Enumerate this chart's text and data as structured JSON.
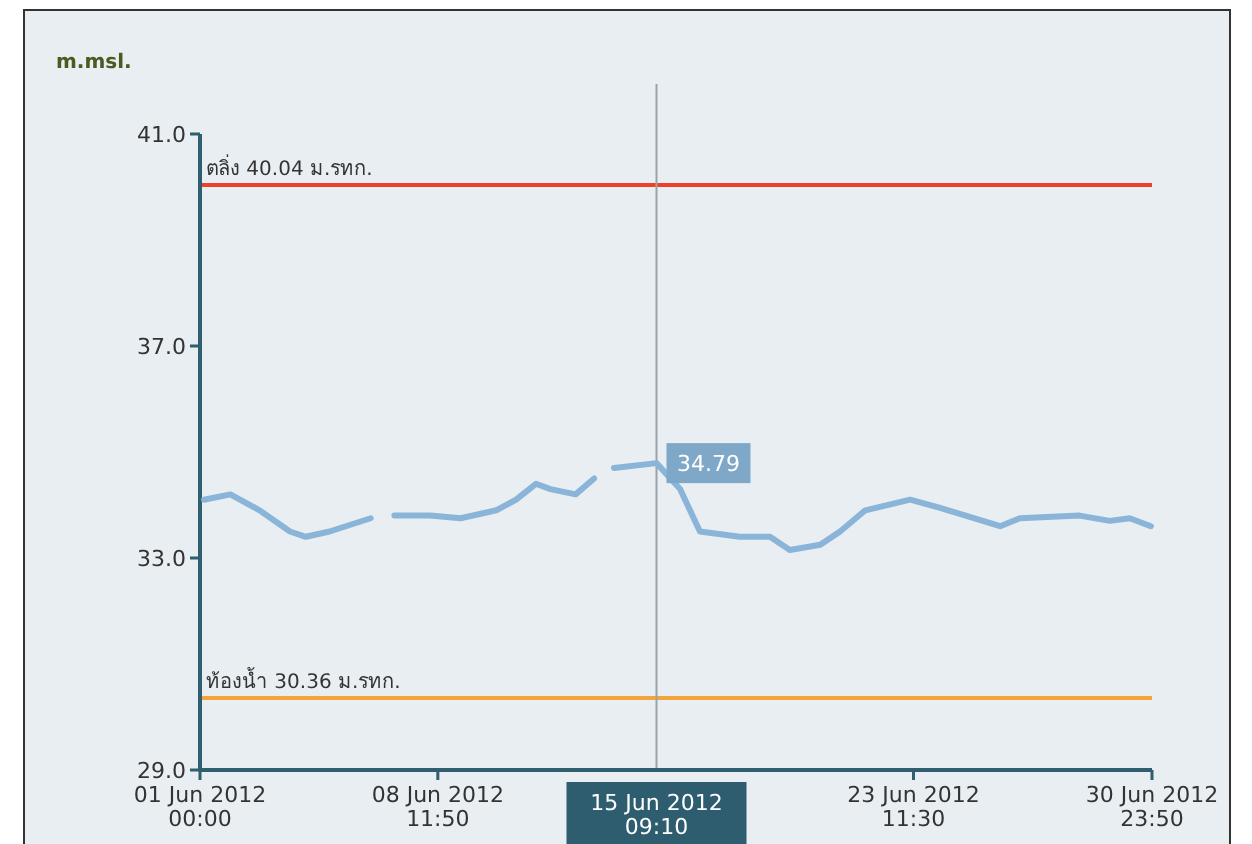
{
  "chart_data": {
    "type": "line",
    "ylabel": "m.msl.",
    "series": [
      {
        "color": "#8ab4d8",
        "x": [
          "2012-06-01T03:00",
          "2012-06-01T23:00",
          "2012-06-02T21:00",
          "2012-06-03T20:00",
          "2012-06-04T08:00",
          "2012-06-05T02:00",
          "2012-06-06T09:00"
        ],
        "values": [
          34.1,
          34.2,
          33.9,
          33.5,
          33.4,
          33.5,
          33.75
        ]
      },
      {
        "color": "#8ab4d8",
        "x": [
          "2012-06-07T03:00",
          "2012-06-08T06:00",
          "2012-06-09T05:00",
          "2012-06-10T08:00",
          "2012-06-10T23:00",
          "2012-06-11T14:00",
          "2012-06-12T01:00",
          "2012-06-12T20:00",
          "2012-06-13T10:00"
        ],
        "values": [
          33.8,
          33.8,
          33.75,
          33.9,
          34.1,
          34.4,
          34.3,
          34.2,
          34.5
        ]
      },
      {
        "color": "#8ab4d8",
        "x": [
          "2012-06-14T01:00",
          "2012-06-15T09:10",
          "2012-06-16T03:00",
          "2012-06-16T18:00",
          "2012-06-18T00:00",
          "2012-06-18T23:00",
          "2012-06-19T14:00",
          "2012-06-20T13:00",
          "2012-06-21T04:00",
          "2012-06-21T23:00",
          "2012-06-23T09:00",
          "2012-06-24T07:00",
          "2012-06-26T05:00",
          "2012-06-26T20:00",
          "2012-06-28T17:00",
          "2012-06-29T16:00",
          "2012-06-30T07:00",
          "2012-06-30T23:00"
        ],
        "values": [
          34.7,
          34.79,
          34.3,
          33.5,
          33.4,
          33.4,
          33.15,
          33.25,
          33.5,
          33.9,
          34.1,
          33.95,
          33.6,
          33.75,
          33.8,
          33.7,
          33.75,
          33.6
        ]
      }
    ],
    "xlim": [
      "2012-06-01T00:00",
      "2012-06-30T23:50"
    ],
    "xticks": [
      {
        "value": "2012-06-01T00:00",
        "label": "01 Jun 2012\n00:00"
      },
      {
        "value": "2012-06-08T11:50",
        "label": "08 Jun 2012\n11:50"
      },
      {
        "value": "2012-06-23T11:30",
        "label": "23 Jun 2012\n11:30"
      },
      {
        "value": "2012-06-30T23:50",
        "label": "30 Jun 2012\n23:50"
      }
    ],
    "ylim": [
      29,
      41
    ],
    "yticks": [
      {
        "value": 29,
        "label": "29.0"
      },
      {
        "value": 33,
        "label": "33.0"
      },
      {
        "value": 37,
        "label": "37.0"
      },
      {
        "value": 41,
        "label": "41.0"
      }
    ],
    "ref_lines": [
      {
        "axis": "y",
        "value": 40.04,
        "label": "ตลิ่ง 40.04 ม.รทก.",
        "color": "#f0402a"
      },
      {
        "axis": "y",
        "value": 30.36,
        "label": "ท้องน้ำ 30.36 ม.รทก.",
        "color": "#f3a53a"
      },
      {
        "axis": "x",
        "value": "2012-06-15T09:10",
        "label": "15 Jun 2012\n09:10",
        "color": "#9aa4a8"
      }
    ],
    "annotations": [
      {
        "text": "34.79",
        "x": "2012-06-15T09:10",
        "y": 34.79
      }
    ]
  }
}
